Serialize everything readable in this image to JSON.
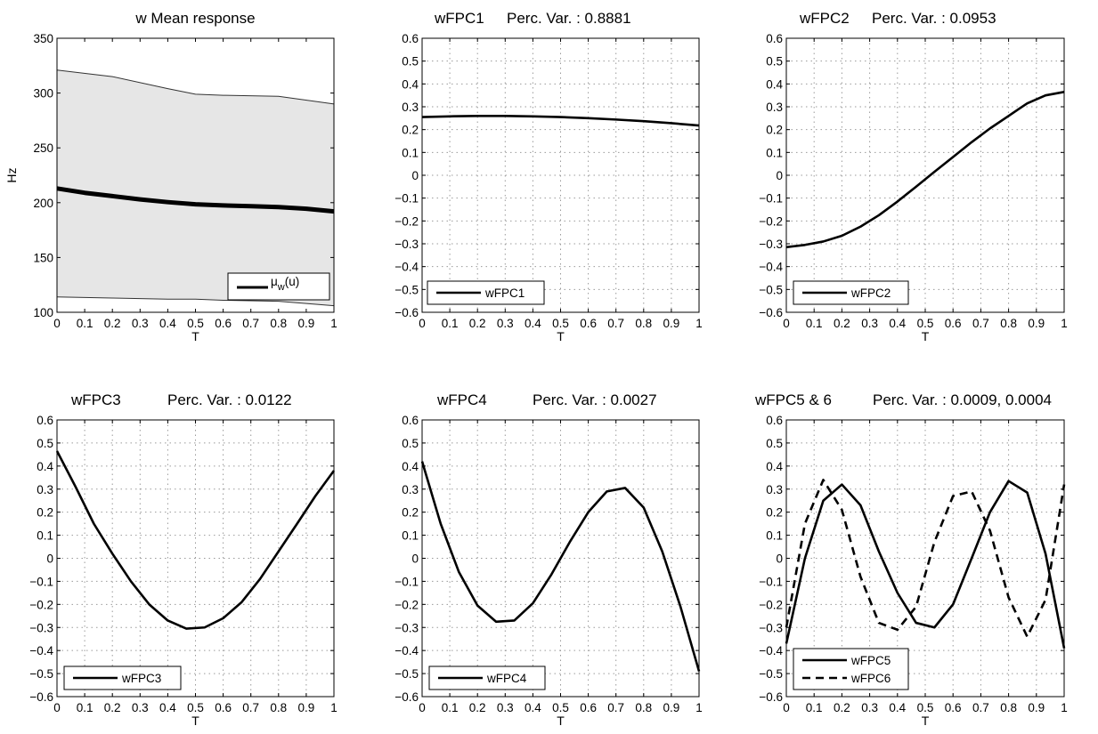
{
  "chart_data": [
    {
      "type": "area",
      "title": "w Mean response",
      "xlabel": "T",
      "ylabel": "Hz",
      "xlim": [
        0,
        1
      ],
      "ylim": [
        100,
        350
      ],
      "xticks": [
        0,
        0.1,
        0.2,
        0.3,
        0.4,
        0.5,
        0.6,
        0.7,
        0.8,
        0.9,
        1
      ],
      "yticks": [
        100,
        150,
        200,
        250,
        300,
        350
      ],
      "grid": false,
      "legend_position": "bottom-right",
      "band": {
        "x": [
          0,
          0.2,
          0.4,
          0.5,
          0.6,
          0.8,
          1
        ],
        "upper": [
          321,
          315,
          304,
          299,
          298,
          297,
          290
        ],
        "lower": [
          114,
          113,
          112,
          112,
          111,
          110,
          106
        ],
        "color": "#e6e6e6"
      },
      "series": [
        {
          "name": "μ_w(u)",
          "style": "solid-thick",
          "x": [
            0,
            0.1,
            0.2,
            0.3,
            0.4,
            0.5,
            0.6,
            0.7,
            0.8,
            0.9,
            1
          ],
          "y": [
            213,
            209,
            206,
            203,
            200.5,
            198.5,
            197.5,
            196.8,
            196,
            194.5,
            192
          ]
        }
      ]
    },
    {
      "type": "line",
      "title": "wFPC1",
      "subtitle": "Perc. Var. : 0.8881",
      "xlabel": "T",
      "ylabel": "",
      "xlim": [
        0,
        1
      ],
      "ylim": [
        -0.6,
        0.6
      ],
      "xticks": [
        0,
        0.1,
        0.2,
        0.3,
        0.4,
        0.5,
        0.6,
        0.7,
        0.8,
        0.9,
        1
      ],
      "yticks": [
        -0.6,
        -0.5,
        -0.4,
        -0.3,
        -0.2,
        -0.1,
        0,
        0.1,
        0.2,
        0.3,
        0.4,
        0.5,
        0.6
      ],
      "grid": true,
      "legend_position": "bottom-left",
      "series": [
        {
          "name": "wFPC1",
          "style": "solid",
          "x": [
            0,
            0.1,
            0.2,
            0.3,
            0.4,
            0.5,
            0.6,
            0.7,
            0.8,
            0.9,
            1
          ],
          "y": [
            0.255,
            0.258,
            0.26,
            0.26,
            0.258,
            0.255,
            0.25,
            0.244,
            0.237,
            0.228,
            0.218
          ]
        }
      ]
    },
    {
      "type": "line",
      "title": "wFPC2",
      "subtitle": "Perc. Var. : 0.0953",
      "xlabel": "T",
      "ylabel": "",
      "xlim": [
        0,
        1
      ],
      "ylim": [
        -0.6,
        0.6
      ],
      "xticks": [
        0,
        0.1,
        0.2,
        0.3,
        0.4,
        0.5,
        0.6,
        0.7,
        0.8,
        0.9,
        1
      ],
      "yticks": [
        -0.6,
        -0.5,
        -0.4,
        -0.3,
        -0.2,
        -0.1,
        0,
        0.1,
        0.2,
        0.3,
        0.4,
        0.5,
        0.6
      ],
      "grid": true,
      "legend_position": "bottom-left",
      "series": [
        {
          "name": "wFPC2",
          "style": "solid",
          "x": [
            0,
            0.067,
            0.133,
            0.2,
            0.267,
            0.333,
            0.4,
            0.467,
            0.533,
            0.6,
            0.667,
            0.733,
            0.8,
            0.867,
            0.933,
            1
          ],
          "y": [
            -0.315,
            -0.305,
            -0.29,
            -0.265,
            -0.225,
            -0.175,
            -0.115,
            -0.05,
            0.015,
            0.08,
            0.145,
            0.205,
            0.26,
            0.315,
            0.35,
            0.365
          ]
        }
      ]
    },
    {
      "type": "line",
      "title": "wFPC3",
      "subtitle": "Perc. Var. : 0.0122",
      "xlabel": "T",
      "ylabel": "",
      "xlim": [
        0,
        1
      ],
      "ylim": [
        -0.6,
        0.6
      ],
      "xticks": [
        0,
        0.1,
        0.2,
        0.3,
        0.4,
        0.5,
        0.6,
        0.7,
        0.8,
        0.9,
        1
      ],
      "yticks": [
        -0.6,
        -0.5,
        -0.4,
        -0.3,
        -0.2,
        -0.1,
        0,
        0.1,
        0.2,
        0.3,
        0.4,
        0.5,
        0.6
      ],
      "grid": true,
      "legend_position": "bottom-left",
      "series": [
        {
          "name": "wFPC3",
          "style": "solid",
          "x": [
            0,
            0.067,
            0.133,
            0.2,
            0.267,
            0.333,
            0.4,
            0.467,
            0.533,
            0.6,
            0.667,
            0.733,
            0.8,
            0.867,
            0.933,
            1
          ],
          "y": [
            0.465,
            0.31,
            0.15,
            0.02,
            -0.1,
            -0.2,
            -0.27,
            -0.305,
            -0.3,
            -0.26,
            -0.19,
            -0.09,
            0.03,
            0.15,
            0.27,
            0.38
          ]
        }
      ]
    },
    {
      "type": "line",
      "title": "wFPC4",
      "subtitle": "Perc. Var. : 0.0027",
      "xlabel": "T",
      "ylabel": "",
      "xlim": [
        0,
        1
      ],
      "ylim": [
        -0.6,
        0.6
      ],
      "xticks": [
        0,
        0.1,
        0.2,
        0.3,
        0.4,
        0.5,
        0.6,
        0.7,
        0.8,
        0.9,
        1
      ],
      "yticks": [
        -0.6,
        -0.5,
        -0.4,
        -0.3,
        -0.2,
        -0.1,
        0,
        0.1,
        0.2,
        0.3,
        0.4,
        0.5,
        0.6
      ],
      "grid": true,
      "legend_position": "bottom-left",
      "series": [
        {
          "name": "wFPC4",
          "style": "solid",
          "x": [
            0,
            0.067,
            0.133,
            0.2,
            0.267,
            0.333,
            0.4,
            0.467,
            0.533,
            0.6,
            0.667,
            0.733,
            0.8,
            0.867,
            0.933,
            1
          ],
          "y": [
            0.42,
            0.15,
            -0.06,
            -0.205,
            -0.275,
            -0.27,
            -0.195,
            -0.07,
            0.07,
            0.2,
            0.29,
            0.305,
            0.22,
            0.03,
            -0.21,
            -0.49
          ]
        }
      ]
    },
    {
      "type": "line",
      "title": "wFPC5 & 6",
      "subtitle": "Perc. Var. : 0.0009, 0.0004",
      "xlabel": "T",
      "ylabel": "",
      "xlim": [
        0,
        1
      ],
      "ylim": [
        -0.6,
        0.6
      ],
      "xticks": [
        0,
        0.1,
        0.2,
        0.3,
        0.4,
        0.5,
        0.6,
        0.7,
        0.8,
        0.9,
        1
      ],
      "yticks": [
        -0.6,
        -0.5,
        -0.4,
        -0.3,
        -0.2,
        -0.1,
        0,
        0.1,
        0.2,
        0.3,
        0.4,
        0.5,
        0.6
      ],
      "grid": true,
      "legend_position": "bottom-left",
      "series": [
        {
          "name": "wFPC5",
          "style": "solid",
          "x": [
            0,
            0.067,
            0.133,
            0.2,
            0.267,
            0.333,
            0.4,
            0.467,
            0.533,
            0.6,
            0.667,
            0.733,
            0.8,
            0.867,
            0.933,
            1
          ],
          "y": [
            -0.37,
            0.0,
            0.25,
            0.32,
            0.23,
            0.03,
            -0.15,
            -0.28,
            -0.3,
            -0.2,
            0.0,
            0.2,
            0.335,
            0.285,
            0.02,
            -0.39
          ]
        },
        {
          "name": "wFPC6",
          "style": "dashed",
          "x": [
            0,
            0.067,
            0.133,
            0.2,
            0.267,
            0.333,
            0.4,
            0.467,
            0.533,
            0.6,
            0.667,
            0.733,
            0.8,
            0.867,
            0.933,
            1
          ],
          "y": [
            -0.3,
            0.15,
            0.34,
            0.21,
            -0.08,
            -0.28,
            -0.31,
            -0.21,
            0.07,
            0.27,
            0.29,
            0.12,
            -0.17,
            -0.34,
            -0.18,
            0.32
          ]
        }
      ]
    }
  ]
}
